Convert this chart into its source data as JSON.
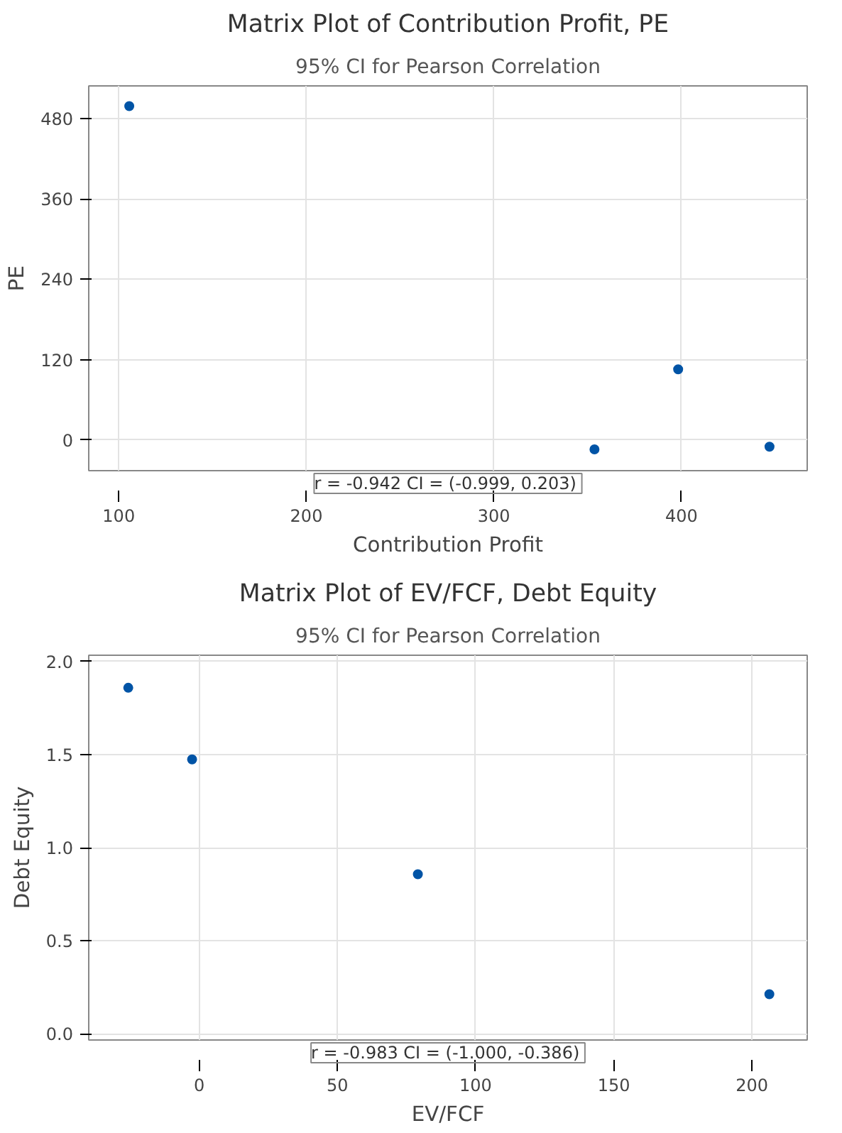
{
  "chart_data": [
    {
      "type": "scatter",
      "title": "Matrix Plot of Contribution Profit, PE",
      "subtitle": "95% CI for Pearson Correlation",
      "xlabel": "Contribution Profit",
      "ylabel": "PE",
      "x": [
        105.6,
        353.6,
        398.2,
        446.9
      ],
      "values": [
        498.8,
        -14.2,
        105.4,
        -10.2
      ],
      "color": "#0054a6",
      "marker": "circle",
      "xlim": [
        84,
        467
      ],
      "ylim": [
        -46,
        529
      ],
      "xticks": [
        100,
        200,
        300,
        400
      ],
      "yticks": [
        0,
        120,
        240,
        360,
        480
      ],
      "grid": true,
      "annotations": [
        "r = -0.942  CI = (-0.999, 0.203)"
      ]
    },
    {
      "type": "scatter",
      "title": "Matrix Plot of EV/FCF, Debt Equity",
      "subtitle": "95% CI for Pearson Correlation",
      "xlabel": "EV/FCF",
      "ylabel": "Debt Equity",
      "x": [
        -25.7,
        -2.6,
        79.1,
        206.3
      ],
      "values": [
        1.859,
        1.474,
        0.857,
        0.212
      ],
      "color": "#0054a6",
      "marker": "circle",
      "xlim": [
        -40,
        220
      ],
      "ylim": [
        -0.034,
        2.034
      ],
      "xticks": [
        0,
        50,
        100,
        150,
        200
      ],
      "yticks": [
        {
          "value": 0,
          "label": "0.0"
        },
        {
          "value": 0.5,
          "label": "0.5"
        },
        {
          "value": 1,
          "label": "1.0"
        },
        {
          "value": 1.5,
          "label": "1.5"
        },
        {
          "value": 2,
          "label": "2.0"
        }
      ],
      "grid": true,
      "annotations": [
        "r = -0.983  CI = (-1.000, -0.386)"
      ]
    }
  ]
}
